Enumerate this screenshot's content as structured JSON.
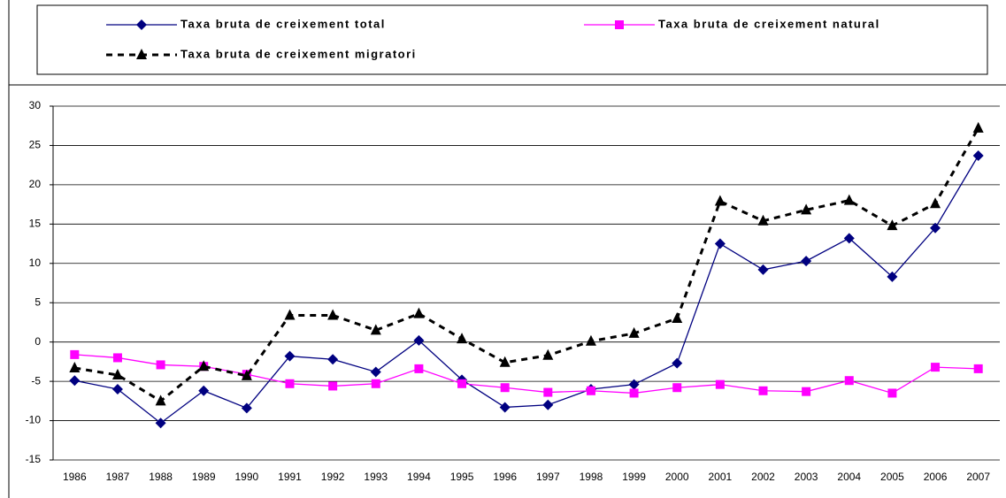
{
  "chart_data": {
    "type": "line",
    "categories": [
      "1986",
      "1987",
      "1988",
      "1989",
      "1990",
      "1991",
      "1992",
      "1993",
      "1994",
      "1995",
      "1996",
      "1997",
      "1998",
      "1999",
      "2000",
      "2001",
      "2002",
      "2003",
      "2004",
      "2005",
      "2006",
      "2007"
    ],
    "series": [
      {
        "name": "Taxa bruta de creixement total",
        "color": "#000080",
        "marker": "diamond",
        "values": [
          -4.9,
          -6.0,
          -10.3,
          -6.2,
          -8.4,
          -1.8,
          -2.2,
          -3.8,
          0.2,
          -4.8,
          -8.3,
          -8.0,
          -6.0,
          -5.4,
          -2.7,
          12.5,
          9.2,
          10.3,
          13.2,
          8.3,
          14.5,
          23.7
        ]
      },
      {
        "name": "Taxa bruta de creixement natural",
        "color": "#ff00ff",
        "marker": "square",
        "values": [
          -1.6,
          -2.0,
          -2.9,
          -3.1,
          -4.1,
          -5.3,
          -5.6,
          -5.3,
          -3.4,
          -5.3,
          -5.8,
          -6.4,
          -6.2,
          -6.5,
          -5.8,
          -5.4,
          -6.2,
          -6.3,
          -4.9,
          -6.5,
          -3.2,
          -3.4
        ]
      },
      {
        "name": "Taxa bruta de creixement migratori",
        "color": "#000000",
        "marker": "triangle",
        "dashed": true,
        "values": [
          -3.3,
          -4.2,
          -7.5,
          -3.1,
          -4.3,
          3.4,
          3.4,
          1.5,
          3.6,
          0.4,
          -2.6,
          -1.7,
          0.1,
          1.1,
          3.0,
          17.9,
          15.4,
          16.8,
          18.0,
          14.8,
          17.6,
          27.2
        ]
      }
    ],
    "ylim": [
      -15,
      30
    ],
    "yticks": [
      -15,
      -10,
      -5,
      0,
      5,
      10,
      15,
      20,
      25,
      30
    ],
    "grid": true
  }
}
